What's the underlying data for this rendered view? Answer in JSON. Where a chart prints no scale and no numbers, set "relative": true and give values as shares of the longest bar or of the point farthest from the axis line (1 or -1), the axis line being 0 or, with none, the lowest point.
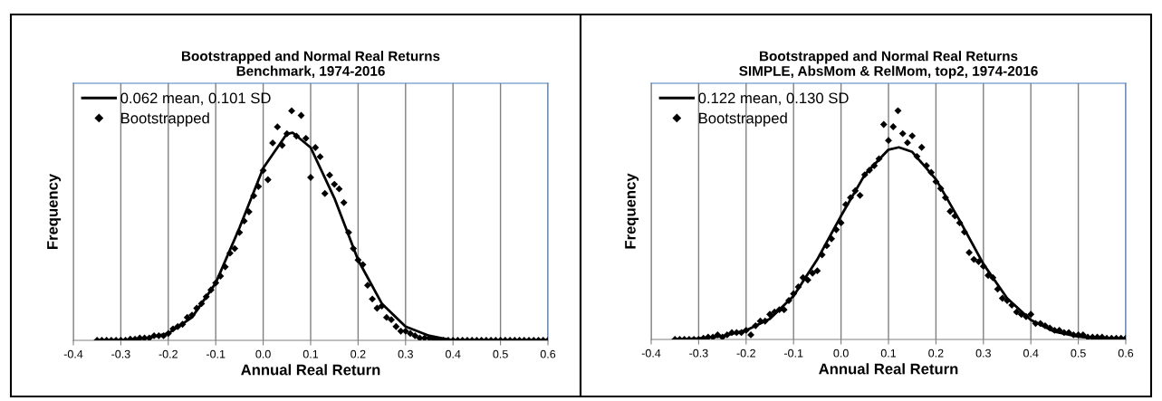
{
  "chart_data": [
    {
      "type": "scatter",
      "title": "Bootstrapped and Normal Real Returns\nBenchmark, 1974-2016",
      "xlabel": "Annual Real Return",
      "ylabel": "Frequency",
      "relative": true,
      "xlim": [
        -0.4,
        0.6
      ],
      "xticks": [
        -0.4,
        -0.3,
        -0.2,
        -0.1,
        {
          "value": 0,
          "label": "0.0"
        },
        0.1,
        0.2,
        0.3,
        0.4,
        0.5,
        0.6
      ],
      "grid": "x",
      "legend": "top left",
      "tick_labels": "x",
      "series": [
        {
          "name": "0.062 mean, 0.101 SD",
          "type": "line",
          "color": "#000000",
          "marker": "none",
          "line_style": "solid",
          "x": [
            -0.35,
            -0.3,
            -0.25,
            -0.2,
            -0.15,
            -0.1,
            -0.05,
            0.0,
            0.05,
            0.062,
            0.1,
            0.15,
            0.2,
            0.25,
            0.3,
            0.35,
            0.4,
            0.5,
            0.6
          ],
          "values": [
            0.0,
            0.0,
            0.008,
            0.03,
            0.1,
            0.25,
            0.49,
            0.75,
            0.9,
            0.905,
            0.84,
            0.62,
            0.35,
            0.16,
            0.06,
            0.02,
            0.0,
            0.0,
            0.0
          ]
        },
        {
          "name": "Bootstrapped",
          "color": "#000000",
          "marker": "diamond",
          "x": [
            -0.35,
            -0.34,
            -0.33,
            -0.32,
            -0.31,
            -0.3,
            -0.29,
            -0.28,
            -0.27,
            -0.26,
            -0.25,
            -0.24,
            -0.23,
            -0.22,
            -0.21,
            -0.2,
            -0.19,
            -0.18,
            -0.17,
            -0.16,
            -0.15,
            -0.14,
            -0.13,
            -0.12,
            -0.11,
            -0.1,
            -0.09,
            -0.08,
            -0.07,
            -0.06,
            -0.05,
            -0.04,
            -0.03,
            -0.02,
            -0.01,
            0.0,
            0.01,
            0.02,
            0.03,
            0.04,
            0.05,
            0.06,
            0.07,
            0.08,
            0.09,
            0.1,
            0.11,
            0.12,
            0.13,
            0.14,
            0.15,
            0.16,
            0.17,
            0.18,
            0.19,
            0.2,
            0.21,
            0.22,
            0.23,
            0.24,
            0.25,
            0.26,
            0.27,
            0.28,
            0.29,
            0.3,
            0.31,
            0.32,
            0.33,
            0.34,
            0.35,
            0.36,
            0.37,
            0.38,
            0.39,
            0.4,
            0.41,
            0.42,
            0.43,
            0.44,
            0.45,
            0.46,
            0.47,
            0.48,
            0.49,
            0.5,
            0.51,
            0.52,
            0.53,
            0.54,
            0.55,
            0.56,
            0.57,
            0.58,
            0.59,
            0.6
          ],
          "values": [
            0,
            0,
            0,
            0,
            0,
            0,
            0,
            0.005,
            0.005,
            0.01,
            0.01,
            0.01,
            0.02,
            0.02,
            0.02,
            0.03,
            0.05,
            0.06,
            0.07,
            0.1,
            0.11,
            0.14,
            0.16,
            0.19,
            0.22,
            0.25,
            0.28,
            0.32,
            0.38,
            0.4,
            0.47,
            0.52,
            0.56,
            0.63,
            0.67,
            0.74,
            0.7,
            0.86,
            0.93,
            0.85,
            0.9,
            1.0,
            0.89,
            0.98,
            0.88,
            0.71,
            0.84,
            0.8,
            0.64,
            0.72,
            0.68,
            0.66,
            0.6,
            0.47,
            0.4,
            0.35,
            0.33,
            0.24,
            0.18,
            0.14,
            0.15,
            0.1,
            0.09,
            0.06,
            0.04,
            0.04,
            0.03,
            0.02,
            0.01,
            0.01,
            0.01,
            0.005,
            0,
            0,
            0,
            0,
            0,
            0,
            0,
            0,
            0,
            0,
            0,
            0,
            0,
            0,
            0,
            0,
            0,
            0,
            0,
            0,
            0,
            0,
            0,
            0
          ]
        }
      ]
    },
    {
      "type": "scatter",
      "title": "Bootstrapped and Normal Real Returns\nSIMPLE, AbsMom & RelMom, top2, 1974-2016",
      "xlabel": "Annual Real Return",
      "ylabel": "Frequency",
      "relative": true,
      "xlim": [
        -0.4,
        0.6
      ],
      "xticks": [
        -0.4,
        -0.3,
        -0.2,
        -0.1,
        {
          "value": 0,
          "label": "0.0"
        },
        0.1,
        0.2,
        0.3,
        0.4,
        0.5,
        0.6
      ],
      "grid": "x",
      "legend": "top left",
      "tick_labels": "x",
      "series": [
        {
          "name": "0.122 mean, 0.130 SD",
          "type": "line",
          "color": "#000000",
          "marker": "none",
          "line_style": "solid",
          "x": [
            -0.35,
            -0.3,
            -0.25,
            -0.2,
            -0.15,
            -0.1,
            -0.05,
            0.0,
            0.05,
            0.1,
            0.122,
            0.15,
            0.2,
            0.25,
            0.3,
            0.35,
            0.4,
            0.45,
            0.5,
            0.55,
            0.6
          ],
          "values": [
            0.0,
            0.004,
            0.014,
            0.04,
            0.09,
            0.19,
            0.35,
            0.54,
            0.72,
            0.83,
            0.84,
            0.82,
            0.7,
            0.52,
            0.33,
            0.18,
            0.085,
            0.034,
            0.012,
            0.003,
            0.0
          ]
        },
        {
          "name": "Bootstrapped",
          "color": "#000000",
          "marker": "diamond",
          "x": [
            -0.35,
            -0.34,
            -0.33,
            -0.32,
            -0.31,
            -0.3,
            -0.29,
            -0.28,
            -0.27,
            -0.26,
            -0.25,
            -0.24,
            -0.23,
            -0.22,
            -0.21,
            -0.2,
            -0.19,
            -0.18,
            -0.17,
            -0.16,
            -0.15,
            -0.14,
            -0.13,
            -0.12,
            -0.11,
            -0.1,
            -0.09,
            -0.08,
            -0.07,
            -0.06,
            -0.05,
            -0.04,
            -0.03,
            -0.02,
            -0.01,
            0.0,
            0.01,
            0.02,
            0.03,
            0.04,
            0.05,
            0.06,
            0.07,
            0.08,
            0.09,
            0.1,
            0.11,
            0.12,
            0.13,
            0.14,
            0.15,
            0.16,
            0.17,
            0.18,
            0.19,
            0.2,
            0.21,
            0.22,
            0.23,
            0.24,
            0.25,
            0.26,
            0.27,
            0.28,
            0.29,
            0.3,
            0.31,
            0.32,
            0.33,
            0.34,
            0.35,
            0.36,
            0.37,
            0.38,
            0.39,
            0.4,
            0.41,
            0.42,
            0.43,
            0.44,
            0.45,
            0.46,
            0.47,
            0.48,
            0.49,
            0.5,
            0.51,
            0.52,
            0.53,
            0.54,
            0.55,
            0.56,
            0.57,
            0.58,
            0.59,
            0.6
          ],
          "values": [
            0,
            0,
            0,
            0,
            0,
            0,
            0.005,
            0.01,
            0.01,
            0.02,
            0.01,
            0.02,
            0.03,
            0.03,
            0.03,
            0.04,
            0.02,
            0.06,
            0.08,
            0.08,
            0.11,
            0.12,
            0.13,
            0.13,
            0.17,
            0.2,
            0.23,
            0.27,
            0.26,
            0.29,
            0.3,
            0.37,
            0.41,
            0.44,
            0.48,
            0.51,
            0.59,
            0.62,
            0.65,
            0.63,
            0.72,
            0.74,
            0.76,
            0.79,
            0.94,
            0.87,
            0.93,
            1.0,
            0.9,
            0.86,
            0.89,
            0.8,
            0.84,
            0.76,
            0.73,
            0.69,
            0.66,
            0.62,
            0.56,
            0.54,
            0.51,
            0.47,
            0.38,
            0.35,
            0.34,
            0.32,
            0.28,
            0.27,
            0.22,
            0.18,
            0.17,
            0.15,
            0.12,
            0.11,
            0.1,
            0.11,
            0.07,
            0.07,
            0.06,
            0.05,
            0.04,
            0.04,
            0.03,
            0.03,
            0.02,
            0.02,
            0.02,
            0.01,
            0.01,
            0.01,
            0.01,
            0.005,
            0.005,
            0.005,
            0.005,
            0.005
          ]
        }
      ]
    }
  ]
}
